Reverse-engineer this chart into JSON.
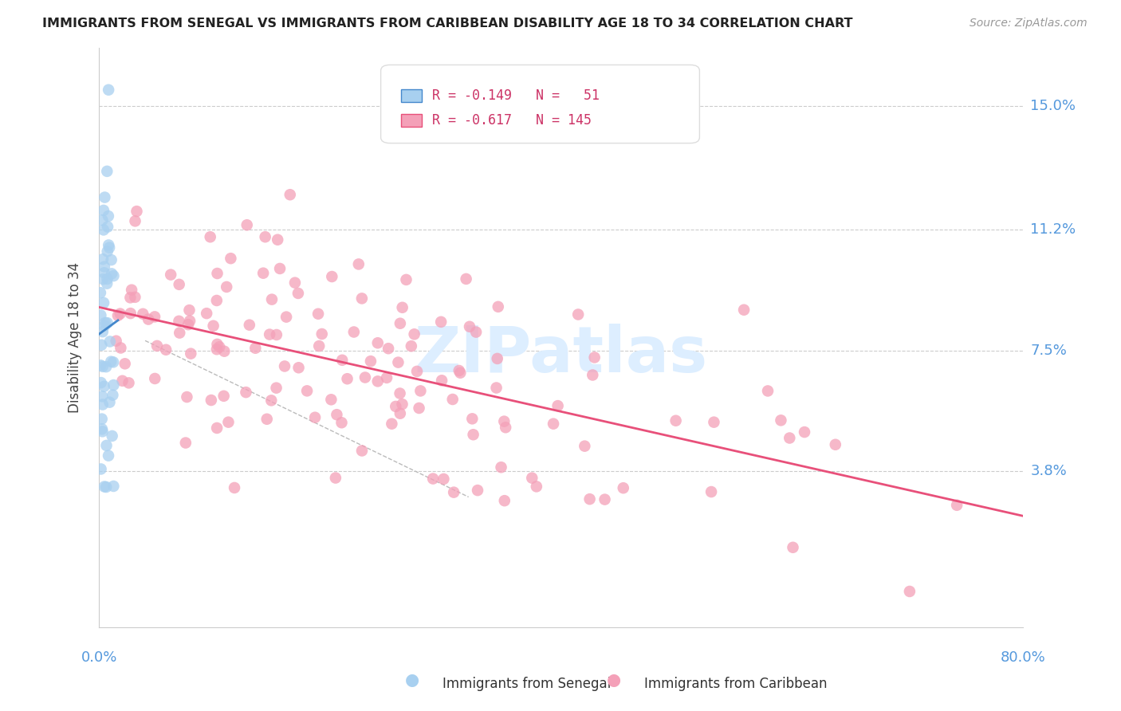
{
  "title": "IMMIGRANTS FROM SENEGAL VS IMMIGRANTS FROM CARIBBEAN DISABILITY AGE 18 TO 34 CORRELATION CHART",
  "source": "Source: ZipAtlas.com",
  "ylabel": "Disability Age 18 to 34",
  "ytick_labels": [
    "3.8%",
    "7.5%",
    "11.2%",
    "15.0%"
  ],
  "ytick_vals": [
    0.038,
    0.075,
    0.112,
    0.15
  ],
  "xlim": [
    0.0,
    0.8
  ],
  "ylim": [
    -0.01,
    0.168
  ],
  "senegal_color": "#a8d0f0",
  "caribbean_color": "#f4a0b8",
  "line_senegal_color": "#4488cc",
  "line_caribbean_color": "#e8507a",
  "watermark_color": "#ddeeff",
  "background_color": "#ffffff",
  "grid_color": "#cccccc",
  "axis_label_color": "#5599dd",
  "title_color": "#222222",
  "source_color": "#999999",
  "legend_text_color": "#cc3366"
}
